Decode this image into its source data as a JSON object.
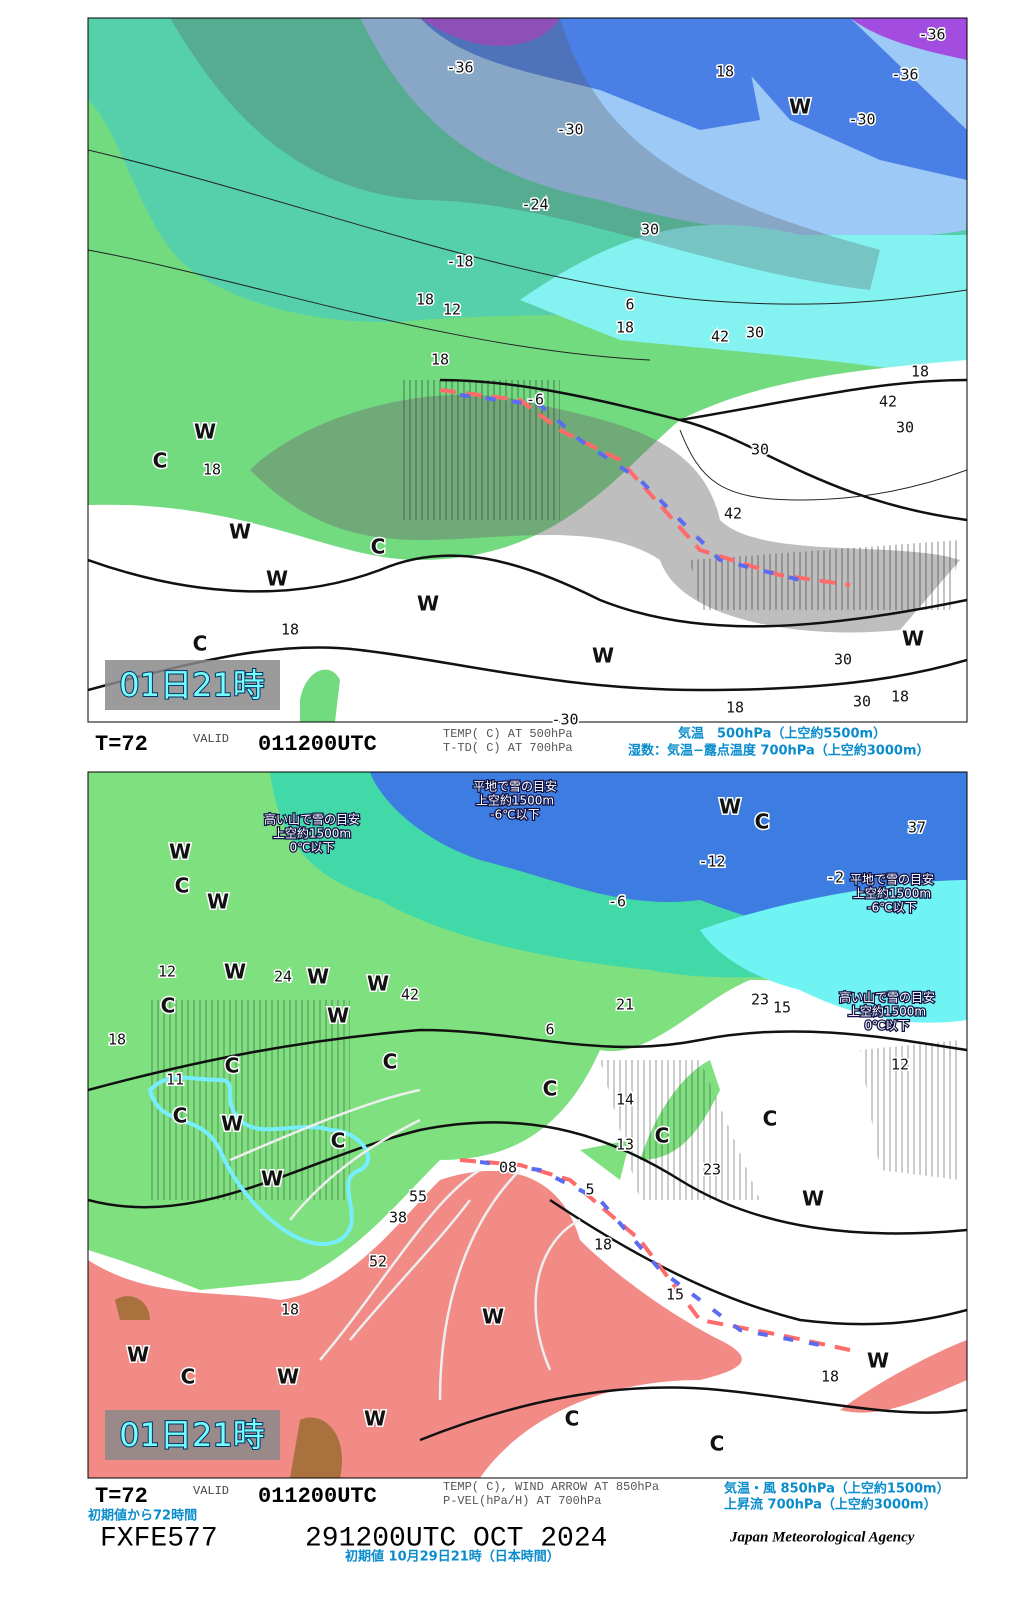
{
  "panels": [
    {
      "time_label": "01日21時",
      "step": "T=72",
      "valid": "VALID",
      "valid_time": "011200UTC",
      "fields": [
        "TEMP( C) AT 500hPa",
        "T-TD( C) AT 700hPa"
      ],
      "legend_ja": [
        "気温　500hPa（上空約5500m）",
        "湿数：気温−露点温度 700hPa（上空約3000m）"
      ],
      "contour_labels": [
        "-36",
        "-36",
        "-36",
        "-30",
        "-30",
        "-24",
        "-18",
        "18",
        "12",
        "18",
        "-6",
        "30",
        "6",
        "18",
        "42",
        "30",
        "18",
        "42",
        "30",
        "30",
        "42",
        "18",
        "30",
        "30",
        "18",
        "18",
        "-30",
        "18",
        "18"
      ],
      "letters": [
        "W",
        "W",
        "C",
        "W",
        "W",
        "C",
        "W",
        "C",
        "W",
        "W"
      ]
    },
    {
      "time_label": "01日21時",
      "step": "T=72",
      "valid": "VALID",
      "valid_time": "011200UTC",
      "fields": [
        "TEMP( C), WIND ARROW AT 850hPa",
        "P-VEL(hPa/H) AT 700hPa"
      ],
      "legend_ja": [
        "気温・風 850hPa（上空約1500m）",
        "上昇流 700hPa（上空約3000m）"
      ],
      "annotations": [
        [
          "高い山で雪の目安",
          "上空約1500m",
          "0℃以下"
        ],
        [
          "平地で雪の目安",
          "上空約1500m",
          "-6℃以下"
        ],
        [
          "平地で雪の目安",
          "上空約1500m",
          "-6℃以下"
        ],
        [
          "高い山で雪の目安",
          "上空約1500m",
          "0℃以下"
        ]
      ],
      "contour_labels": [
        "-12",
        "-6",
        "21",
        "18",
        "12",
        "6",
        "23",
        "15",
        "12",
        "14",
        "13",
        "23",
        "5",
        "18",
        "15",
        "18",
        "55",
        "38",
        "52",
        "18",
        "08",
        "37",
        "-2",
        "42",
        "24",
        "11"
      ],
      "letters": [
        "W",
        "C",
        "W",
        "W",
        "W",
        "C",
        "W",
        "C",
        "W",
        "C",
        "W",
        "C",
        "W",
        "C",
        "C",
        "C",
        "C",
        "W",
        "W",
        "C",
        "W",
        "W",
        "W",
        "C",
        "C",
        "W",
        "W",
        "C"
      ]
    }
  ],
  "footer": {
    "forecast_hours": "初期値から72時間",
    "chart_id": "FXFE577",
    "initial_time": "291200UTC OCT 2024",
    "agency": "Japan Meteorological Agency",
    "initial_local": "初期値 10月29日21時（日本時間）"
  }
}
